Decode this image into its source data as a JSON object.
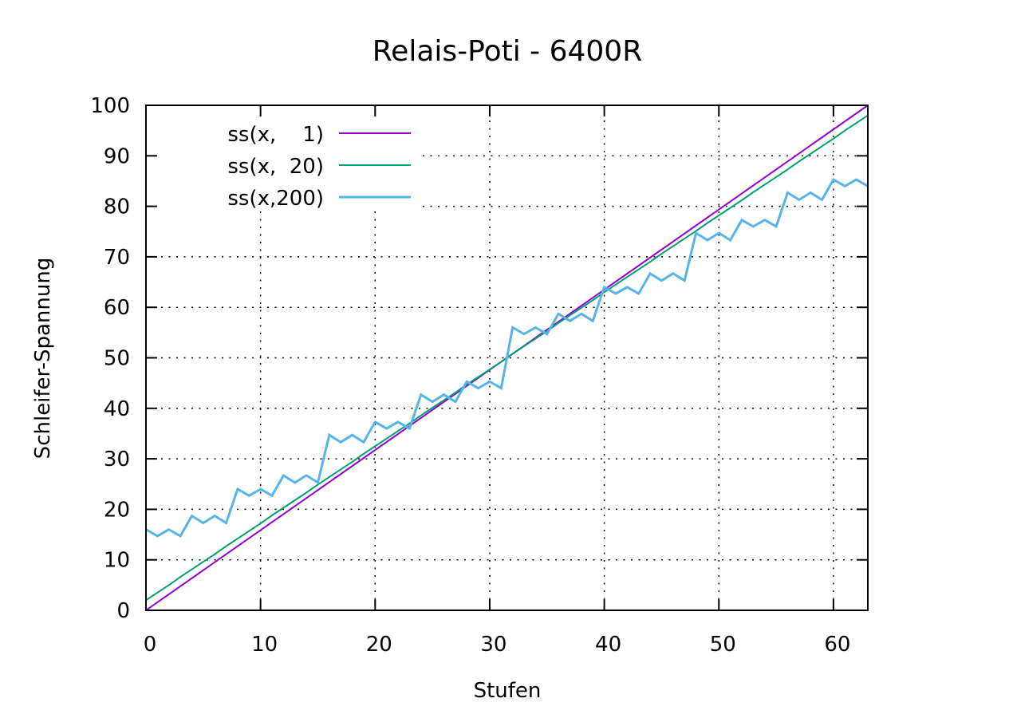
{
  "chart_data": {
    "type": "line",
    "title": "Relais-Poti - 6400R",
    "xlabel": "Stufen",
    "ylabel": "Schleifer-Spannung",
    "xlim": [
      0,
      63
    ],
    "ylim": [
      0,
      100
    ],
    "xticks": [
      0,
      10,
      20,
      30,
      40,
      50,
      60
    ],
    "yticks": [
      0,
      10,
      20,
      30,
      40,
      50,
      60,
      70,
      80,
      90,
      100
    ],
    "grid": true,
    "legend_position": "top-left",
    "series": [
      {
        "name": "ss(x,    1)",
        "color": "#9400d3",
        "x": [
          0,
          63
        ],
        "y": [
          0,
          100
        ]
      },
      {
        "name": "ss(x,  20)",
        "color": "#009e73",
        "x": [
          0,
          1,
          2,
          3,
          4,
          5,
          6,
          7,
          8,
          9,
          10,
          11,
          12,
          13,
          14,
          15,
          16,
          17,
          18,
          19,
          20,
          21,
          22,
          23,
          24,
          25,
          26,
          27,
          28,
          29,
          30,
          31,
          32,
          33,
          34,
          35,
          36,
          37,
          38,
          39,
          40,
          41,
          42,
          43,
          44,
          45,
          46,
          47,
          48,
          49,
          50,
          51,
          52,
          53,
          54,
          55,
          56,
          57,
          58,
          59,
          60,
          61,
          62,
          63
        ],
        "y": [
          2.0,
          3.5,
          5.0,
          6.6,
          8.1,
          9.6,
          11.1,
          12.7,
          14.2,
          15.7,
          17.2,
          18.8,
          20.3,
          21.8,
          23.3,
          24.9,
          26.4,
          27.9,
          29.4,
          31.0,
          32.5,
          34.0,
          35.5,
          37.0,
          38.6,
          40.1,
          41.6,
          43.1,
          44.7,
          46.2,
          47.7,
          49.2,
          50.8,
          52.3,
          53.8,
          55.3,
          56.9,
          58.4,
          59.9,
          61.4,
          63.0,
          64.5,
          66.0,
          67.5,
          69.0,
          70.6,
          72.1,
          73.6,
          75.1,
          76.7,
          78.2,
          79.7,
          81.2,
          82.8,
          84.3,
          85.8,
          87.3,
          88.9,
          90.4,
          91.9,
          93.4,
          95.0,
          96.5,
          98.0
        ]
      },
      {
        "name": "ss(x,200)",
        "color": "#56b4e9",
        "x": [
          0,
          1,
          2,
          3,
          4,
          5,
          6,
          7,
          8,
          9,
          10,
          11,
          12,
          13,
          14,
          15,
          16,
          17,
          18,
          19,
          20,
          21,
          22,
          23,
          24,
          25,
          26,
          27,
          28,
          29,
          30,
          31,
          32,
          33,
          34,
          35,
          36,
          37,
          38,
          39,
          40,
          41,
          42,
          43,
          44,
          45,
          46,
          47,
          48,
          49,
          50,
          51,
          52,
          53,
          54,
          55,
          56,
          57,
          58,
          59,
          60,
          61,
          62,
          63
        ],
        "y": [
          16,
          14.7,
          16,
          14.7,
          18.7,
          17.3,
          18.7,
          17.3,
          24,
          22.7,
          24,
          22.7,
          26.7,
          25.3,
          26.7,
          25.3,
          34.7,
          33.3,
          34.7,
          33.3,
          37.3,
          36,
          37.3,
          36,
          42.7,
          41.3,
          42.7,
          41.3,
          45.3,
          44,
          45.3,
          44,
          56,
          54.7,
          56,
          54.7,
          58.7,
          57.3,
          58.7,
          57.3,
          64,
          62.7,
          64,
          62.7,
          66.7,
          65.3,
          66.7,
          65.3,
          74.7,
          73.3,
          74.7,
          73.3,
          77.3,
          76,
          77.3,
          76,
          82.7,
          81.3,
          82.7,
          81.3,
          85.3,
          84,
          85.3,
          84
        ]
      }
    ]
  }
}
